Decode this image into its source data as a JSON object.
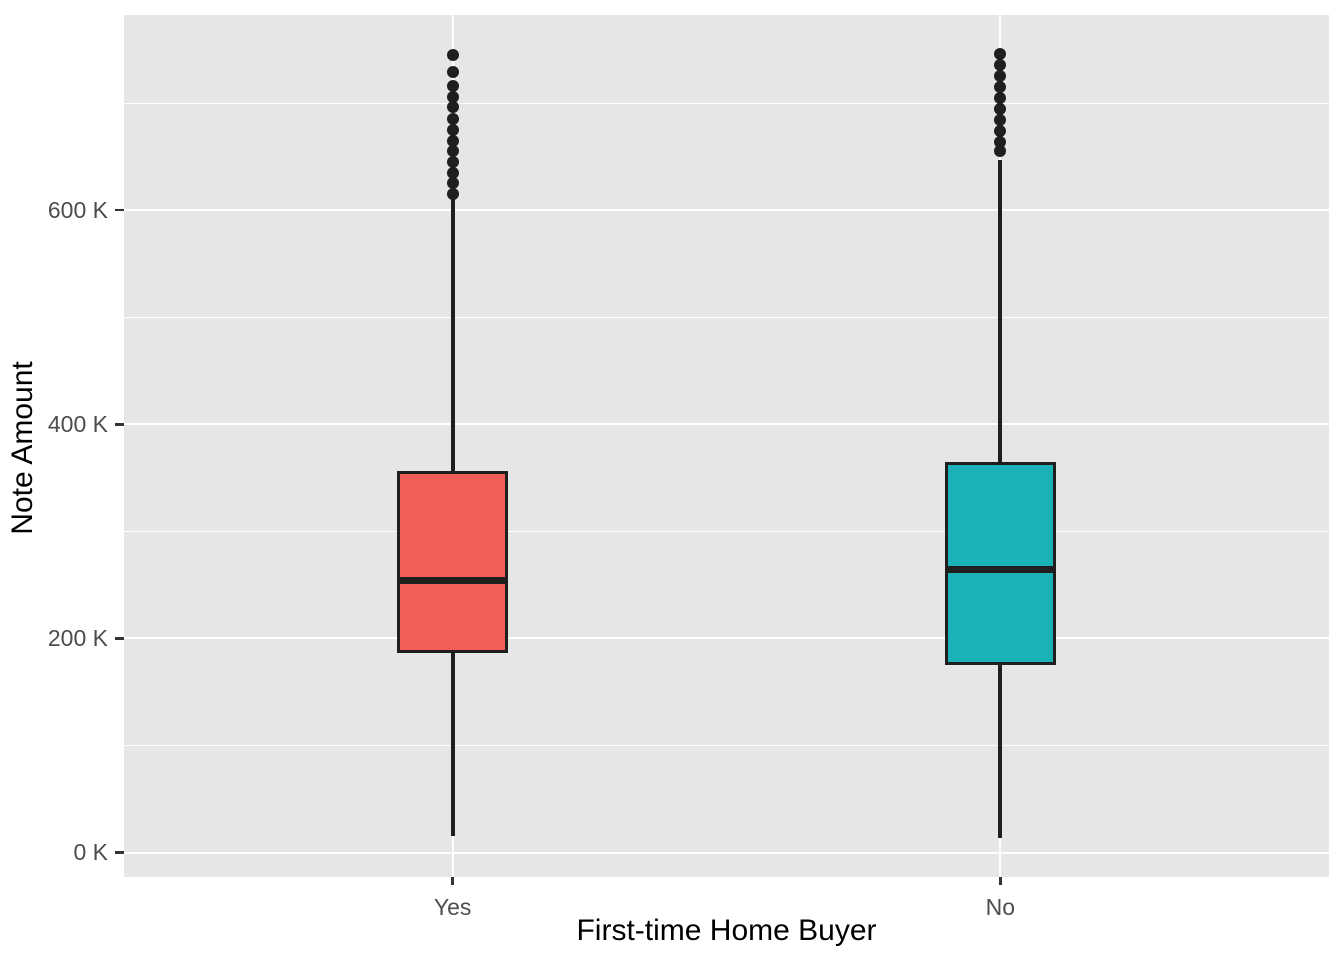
{
  "chart_data": {
    "type": "boxplot",
    "title": "",
    "xlabel": "First-time Home Buyer",
    "ylabel": "Note Amount",
    "categories": [
      "Yes",
      "No"
    ],
    "ylim_k": [
      0,
      783
    ],
    "grid": "on",
    "legend_position": "none",
    "y_major_ticks": [
      {
        "value_k": 0,
        "label": "0 K"
      },
      {
        "value_k": 200,
        "label": "200 K"
      },
      {
        "value_k": 400,
        "label": "400 K"
      },
      {
        "value_k": 600,
        "label": "600 K"
      }
    ],
    "y_minor_ticks_k": [
      100,
      300,
      500,
      700
    ],
    "series": [
      {
        "name": "Yes",
        "fill": "#F25D5A",
        "whisker_low_k": 15,
        "q1_k": 186,
        "median_k": 254,
        "q3_k": 356,
        "whisker_high_k": 610,
        "outliers_k": [
          615,
          625,
          635,
          645,
          655,
          665,
          675,
          685,
          696,
          706,
          716,
          729,
          745
        ]
      },
      {
        "name": "No",
        "fill": "#1AB1B7",
        "whisker_low_k": 14,
        "q1_k": 175,
        "median_k": 264,
        "q3_k": 365,
        "whisker_high_k": 647,
        "outliers_k": [
          655,
          664,
          674,
          684,
          695,
          705,
          715,
          725,
          736,
          746
        ]
      }
    ],
    "colors": {
      "panel_bg": "#E6E6E6",
      "grid": "#FFFFFF",
      "box_stroke": "#1F1F1F",
      "tick_label": "#4D4D4D",
      "axis_title": "#000000"
    }
  }
}
